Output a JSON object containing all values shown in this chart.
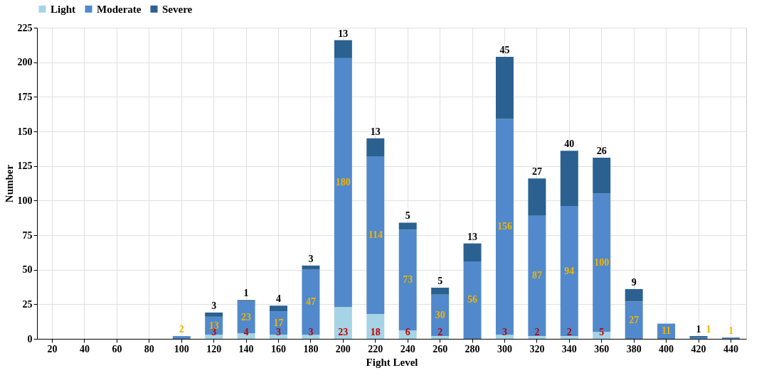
{
  "chart_data": {
    "type": "bar",
    "stacked": true,
    "xlabel": "Fight Level",
    "ylabel": "Number",
    "categories": [
      "20",
      "40",
      "60",
      "80",
      "100",
      "120",
      "140",
      "160",
      "180",
      "200",
      "220",
      "240",
      "260",
      "280",
      "300",
      "320",
      "340",
      "360",
      "380",
      "400",
      "420",
      "440"
    ],
    "series": [
      {
        "name": "Light",
        "color": "#a6d4e6",
        "values": [
          0,
          0,
          0,
          0,
          0,
          3,
          4,
          3,
          3,
          23,
          18,
          6,
          2,
          0,
          3,
          2,
          2,
          5,
          0,
          0,
          0,
          0
        ],
        "value_labels": [
          null,
          null,
          null,
          null,
          null,
          "3",
          "4",
          "3",
          "3",
          "23",
          "18",
          "6",
          "2",
          null,
          "3",
          "2",
          "2",
          "5",
          null,
          null,
          null,
          null
        ]
      },
      {
        "name": "Moderate",
        "color": "#5189cc",
        "values": [
          0,
          0,
          0,
          0,
          2,
          13,
          23,
          17,
          47,
          180,
          114,
          73,
          30,
          56,
          156,
          87,
          94,
          100,
          27,
          11,
          1,
          1
        ],
        "value_labels": [
          null,
          null,
          null,
          null,
          "2",
          "13",
          "23",
          "17",
          "47",
          "180",
          "114",
          "73",
          "30",
          "56",
          "156",
          "87",
          "94",
          "100",
          "27",
          "11",
          "1",
          "1"
        ]
      },
      {
        "name": "Severe",
        "color": "#2a6190",
        "values": [
          0,
          0,
          0,
          0,
          0,
          3,
          1,
          4,
          3,
          13,
          13,
          5,
          5,
          13,
          45,
          27,
          40,
          26,
          9,
          0,
          1,
          0
        ],
        "value_labels": [
          null,
          null,
          null,
          null,
          null,
          "3",
          "1",
          "4",
          "3",
          "13",
          "13",
          "5",
          "5",
          "13",
          "45",
          "27",
          "40",
          "26",
          "9",
          null,
          "1",
          null
        ]
      }
    ],
    "ylim": [
      0,
      225
    ],
    "yticks": [
      0,
      25,
      50,
      75,
      100,
      125,
      150,
      175,
      200,
      225
    ],
    "grid": true,
    "legend": "top"
  }
}
